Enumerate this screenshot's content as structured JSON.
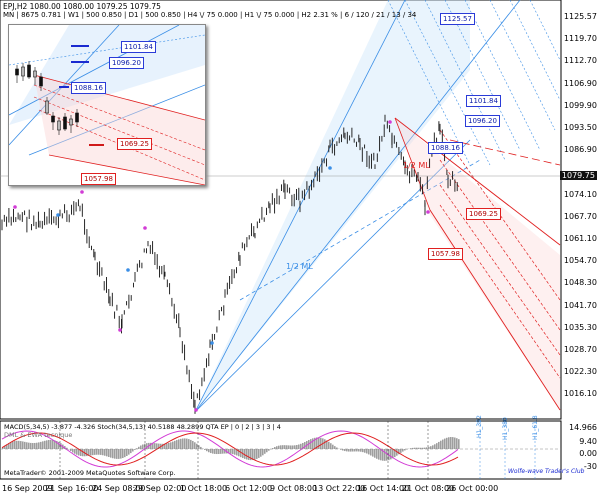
{
  "header": {
    "line1": "EPJ,H2  1080.00  1080.00  1079.25  1079.75",
    "line2": "MN | 8675  0.781 | W1 | 500  0.850 | D1 | 500  0.850 | H4 \\/ 75  0.000 | H1 \\/ 75  0.000 | H2  2.31 %  | 6 / 120 / 21 / 13 / 34"
  },
  "price_axis": [
    "1125.57",
    "1119.70",
    "1112.70",
    "1106.90",
    "1099.90",
    "1093.50",
    "1086.90",
    "1079.75",
    "1074.10",
    "1067.70",
    "1061.10",
    "1054.70",
    "1048.30",
    "1041.70",
    "1035.30",
    "1028.70",
    "1022.30",
    "1016.10"
  ],
  "time_axis": [
    "16 Sep 2009",
    "21 Sep 16:00",
    "24 Sep 08:00",
    "29 Sep 02:00",
    "1 Oct 18:00",
    "6 Oct 12:00",
    "9 Oct 08:00",
    "13 Oct 22:00",
    "16 Oct 14:00",
    "21 Oct 08:00",
    "26 Oct 00:00"
  ],
  "indicator_axis": [
    "14.966",
    "9.40",
    "0.00",
    "-30"
  ],
  "price_boxes": [
    "1125.57",
    "1101.84",
    "1096.20",
    "1088.16",
    "1069.25",
    "1057.98"
  ],
  "inset_boxes": [
    "1101.84",
    "1096.20",
    "1088.16",
    "1069.25",
    "1057.98"
  ],
  "chart_labels": {
    "half_ml": "1/2 ML",
    "half_ml_right": "1/2 ML",
    "h1_labels": [
      "H1_392",
      "H1_380",
      "H1_61.8"
    ]
  },
  "indicator": {
    "line1": "MACD(5,34,5) -3.877 -4.326  Stoch(34,5,13) 40.5188 48.2899  QTA EP  | 0 | 2 | 3 | 3 | 4",
    "line2": "DML & EWA tecnique"
  },
  "footer": {
    "copyright": "© 2001-2009 MetaQuotes Software Corp.",
    "brand": "MetaTrader",
    "signature": "Wolfe-wave Trader's Club"
  },
  "colors": {
    "fork_blue": "#3a8ee6",
    "fork_red": "#e02020",
    "pivot_magenta": "#d23cd6",
    "current_price_bg": "#111111"
  }
}
